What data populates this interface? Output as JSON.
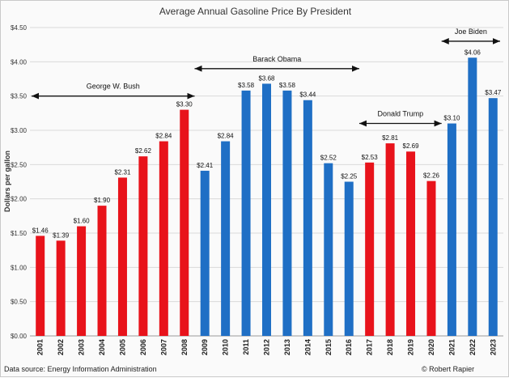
{
  "chart_data": {
    "type": "bar",
    "title": "Average Annual Gasoline Price By President",
    "xlabel": "",
    "ylabel": "Dollars per gallon",
    "ylim": [
      0,
      4.5
    ],
    "yticks": [
      "$0.00",
      "$0.50",
      "$1.00",
      "$1.50",
      "$2.00",
      "$2.50",
      "$3.00",
      "$3.50",
      "$4.00",
      "$4.50"
    ],
    "grid": true,
    "categories": [
      "2001",
      "2002",
      "2003",
      "2004",
      "2005",
      "2006",
      "2007",
      "2008",
      "2009",
      "2010",
      "2011",
      "2012",
      "2013",
      "2014",
      "2015",
      "2016",
      "2017",
      "2018",
      "2019",
      "2020",
      "2021",
      "2022",
      "2023"
    ],
    "values": [
      1.46,
      1.39,
      1.6,
      1.9,
      2.31,
      2.62,
      2.84,
      3.3,
      2.41,
      2.84,
      3.58,
      3.68,
      3.58,
      3.44,
      2.52,
      2.25,
      2.53,
      2.81,
      2.69,
      2.26,
      3.1,
      4.06,
      3.47
    ],
    "labels": [
      "$1.46",
      "$1.39",
      "$1.60",
      "$1.90",
      "$2.31",
      "$2.62",
      "$2.84",
      "$3.30",
      "$2.41",
      "$2.84",
      "$3.58",
      "$3.68",
      "$3.58",
      "$3.44",
      "$2.52",
      "$2.25",
      "$2.53",
      "$2.81",
      "$2.69",
      "$2.26",
      "$3.10",
      "$4.06",
      "$3.47"
    ],
    "party": [
      "R",
      "R",
      "R",
      "R",
      "R",
      "R",
      "R",
      "R",
      "D",
      "D",
      "D",
      "D",
      "D",
      "D",
      "D",
      "D",
      "R",
      "R",
      "R",
      "R",
      "D",
      "D",
      "D"
    ],
    "colors": {
      "R": "#e8131b",
      "D": "#1f6fc5"
    },
    "annotations": [
      {
        "text": "George W. Bush",
        "from": "2001",
        "to": "2008",
        "y": 3.5
      },
      {
        "text": "Barack Obama",
        "from": "2009",
        "to": "2016",
        "y": 3.9
      },
      {
        "text": "Donald Trump",
        "from": "2017",
        "to": "2020",
        "y": 3.1
      },
      {
        "text": "Joe Biden",
        "from": "2021",
        "to": "2023",
        "y": 4.3
      }
    ]
  },
  "footer": {
    "source": "Data source: Energy Information Administration",
    "credit": "© Robert Rapier"
  }
}
